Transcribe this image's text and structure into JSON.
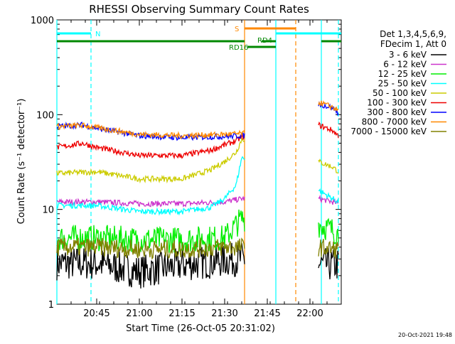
{
  "chart_data": {
    "type": "line",
    "title": "RHESSI Observing Summary Count Rates",
    "xlabel": "Start Time (26-Oct-05 20:31:02)",
    "ylabel": "Count Rate (s⁻¹ detector⁻¹)",
    "yscale": "log",
    "ylim": [
      1,
      1000
    ],
    "xlim": [
      "20:31",
      "22:11"
    ],
    "x_ticks": [
      "20:45",
      "21:00",
      "21:15",
      "21:30",
      "21:45",
      "22:00"
    ],
    "y_ticks": [
      "1",
      "10",
      "100",
      "1000"
    ],
    "legend_position": "right",
    "legend_header": [
      "Det 1,3,4,5,6,9,",
      "FDecim 1, Att 0"
    ],
    "series": [
      {
        "name": "3 - 6 keV",
        "color": "#000000",
        "x": [
          "20:31",
          "20:45",
          "21:00",
          "21:15",
          "21:30",
          "21:36",
          "22:03",
          "22:08",
          "22:10"
        ],
        "y": [
          2.7,
          2.7,
          2.2,
          2.6,
          2.9,
          3.0,
          2.6,
          2.6,
          2.6
        ]
      },
      {
        "name": "6 - 12 keV",
        "color": "#cc33cc",
        "x": [
          "20:31",
          "20:45",
          "21:00",
          "21:15",
          "21:30",
          "21:36",
          "22:03",
          "22:08",
          "22:10"
        ],
        "y": [
          12,
          12,
          11.5,
          11.5,
          12,
          13,
          13,
          12,
          11.5
        ]
      },
      {
        "name": "12 - 25 keV",
        "color": "#00ee00",
        "x": [
          "20:31",
          "20:45",
          "21:00",
          "21:15",
          "21:30",
          "21:36",
          "22:03",
          "22:08",
          "22:10"
        ],
        "y": [
          5,
          5,
          4.8,
          4.8,
          5,
          8,
          7,
          6,
          5.5
        ]
      },
      {
        "name": "25 - 50 keV",
        "color": "#00ffff",
        "x": [
          "20:31",
          "20:45",
          "21:00",
          "21:15",
          "21:25",
          "21:30",
          "21:34",
          "21:36",
          "22:03",
          "22:08",
          "22:10"
        ],
        "y": [
          11,
          11,
          9.5,
          9.5,
          10.5,
          13,
          18,
          35,
          16,
          13,
          12
        ]
      },
      {
        "name": "50 - 100 keV",
        "color": "#cccc00",
        "x": [
          "20:31",
          "20:45",
          "21:00",
          "21:15",
          "21:25",
          "21:30",
          "21:34",
          "21:36",
          "22:03",
          "22:08",
          "22:10"
        ],
        "y": [
          24,
          25,
          21,
          21,
          26,
          32,
          40,
          55,
          32,
          28,
          25
        ]
      },
      {
        "name": "100 - 300 keV",
        "color": "#ee0000",
        "x": [
          "20:31",
          "20:40",
          "20:45",
          "21:00",
          "21:15",
          "21:25",
          "21:30",
          "21:34",
          "21:36",
          "22:03",
          "22:08",
          "22:10"
        ],
        "y": [
          45,
          50,
          45,
          37,
          37,
          42,
          48,
          53,
          58,
          78,
          68,
          60
        ]
      },
      {
        "name": "300 - 800 keV",
        "color": "#0000ff",
        "x": [
          "20:31",
          "20:40",
          "20:45",
          "21:00",
          "21:15",
          "21:30",
          "21:36",
          "22:03",
          "22:08",
          "22:10"
        ],
        "y": [
          75,
          78,
          72,
          60,
          57,
          59,
          60,
          130,
          118,
          105
        ]
      },
      {
        "name": "800 - 7000 keV",
        "color": "#ff8800",
        "x": [
          "20:31",
          "20:40",
          "20:45",
          "21:00",
          "21:15",
          "21:30",
          "21:36",
          "22:03",
          "22:08",
          "22:10"
        ],
        "y": [
          75,
          77,
          73,
          62,
          60,
          62,
          63,
          135,
          120,
          110
        ]
      },
      {
        "name": "7000 - 15000 keV",
        "color": "#808000",
        "x": [
          "20:31",
          "20:45",
          "21:00",
          "21:15",
          "21:30",
          "21:36",
          "22:03",
          "22:08",
          "22:10"
        ],
        "y": [
          4,
          4,
          3.8,
          3.8,
          4,
          4,
          4,
          3.8,
          3.8
        ]
      }
    ],
    "annotations": {
      "N": {
        "label": "N",
        "color": "#00ffff",
        "bars": [
          [
            "20:31",
            "20:43"
          ],
          [
            "21:48",
            "22:11"
          ]
        ],
        "lines": [
          "20:31",
          "20:43",
          "21:48",
          "22:04",
          "22:10"
        ]
      },
      "S": {
        "label": "S",
        "color": "#ff8800",
        "bars": [
          [
            "21:37",
            "21:55"
          ]
        ],
        "lines": [
          "21:37",
          "21:55"
        ]
      },
      "RD4": {
        "label": "RD4",
        "color": "#008800",
        "bars": [
          [
            "20:31",
            "21:37"
          ],
          [
            "21:43",
            "21:48"
          ],
          [
            "22:04",
            "22:11"
          ]
        ]
      },
      "RD16": {
        "label": "RD16",
        "color": "#008800",
        "bars": [
          [
            "21:38",
            "21:43"
          ],
          [
            "21:43",
            "21:48"
          ]
        ]
      }
    },
    "timestamp": "20-Oct-2021 19:48"
  }
}
